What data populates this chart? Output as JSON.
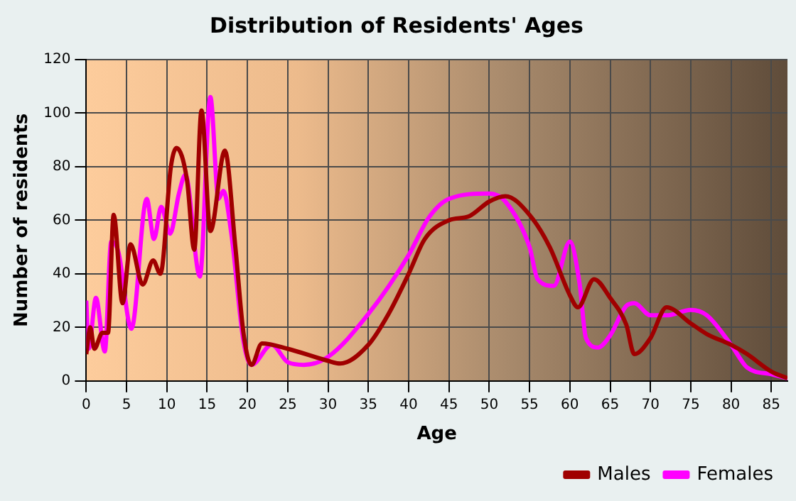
{
  "chart_data": {
    "type": "line",
    "title": "Distribution of Residents' Ages",
    "xlabel": "Age",
    "ylabel": "Number of residents",
    "xlim": [
      0,
      87
    ],
    "xticks": [
      0,
      5,
      10,
      15,
      20,
      25,
      30,
      35,
      40,
      45,
      50,
      55,
      60,
      65,
      70,
      75,
      80,
      85
    ],
    "ylim": [
      0,
      120
    ],
    "yticks": [
      0,
      20,
      40,
      60,
      80,
      100,
      120
    ],
    "grid": true,
    "legend": "bottom right",
    "marker": "none",
    "line_style": "solid",
    "series": [
      {
        "name": "Males",
        "color": "#a00000",
        "x": [
          0,
          0.5,
          1,
          2,
          2.7,
          3.4,
          4.5,
          5.5,
          7,
          8.3,
          9.2,
          10.5,
          11.2,
          12.5,
          13.4,
          14.3,
          15.4,
          17.2,
          18.5,
          19.5,
          20.5,
          21.8,
          25,
          30,
          31.5,
          35,
          37.5,
          40,
          42,
          45,
          47.5,
          50,
          52,
          55,
          57.5,
          60,
          61,
          63,
          65,
          67,
          68,
          70,
          72,
          75,
          77,
          80,
          82,
          85,
          87
        ],
        "values": [
          10,
          20,
          12,
          18,
          18,
          62,
          29,
          51,
          36,
          45,
          40,
          80,
          87,
          75,
          49,
          101,
          56,
          86,
          50,
          18,
          6,
          14,
          12,
          7.5,
          6.5,
          13.5,
          25,
          40,
          53,
          60,
          61.5,
          67,
          69,
          62,
          50,
          32,
          27.5,
          38,
          31,
          21,
          10,
          16,
          27.5,
          21.5,
          17.5,
          13.5,
          10,
          3.5,
          1
        ]
      },
      {
        "name": "Females",
        "color": "#ff00ff",
        "x": [
          0,
          0.3,
          1.2,
          2.3,
          3.1,
          4,
          5.6,
          7.5,
          8.4,
          9.3,
          10.4,
          11.5,
          12.3,
          14.1,
          15.4,
          16.4,
          17,
          18,
          19.5,
          20.5,
          23,
          25,
          27,
          30,
          35,
          40,
          42.5,
          45,
          50,
          52,
          55,
          56,
          58,
          60,
          61.2,
          62,
          63.5,
          65,
          67,
          68,
          70,
          72,
          75,
          77,
          80,
          82,
          85,
          87
        ],
        "values": [
          30,
          12,
          31,
          11,
          52,
          48,
          19.5,
          68,
          53,
          65,
          55,
          70,
          77,
          39,
          106,
          68,
          71,
          55,
          15,
          6,
          13.5,
          7,
          6,
          9,
          25,
          47,
          61,
          68,
          70,
          67,
          50,
          38,
          35.5,
          52,
          36.5,
          16,
          12.5,
          17,
          28,
          29,
          24.5,
          24.5,
          26.5,
          24.5,
          13.5,
          5,
          2.5,
          1
        ]
      }
    ]
  }
}
